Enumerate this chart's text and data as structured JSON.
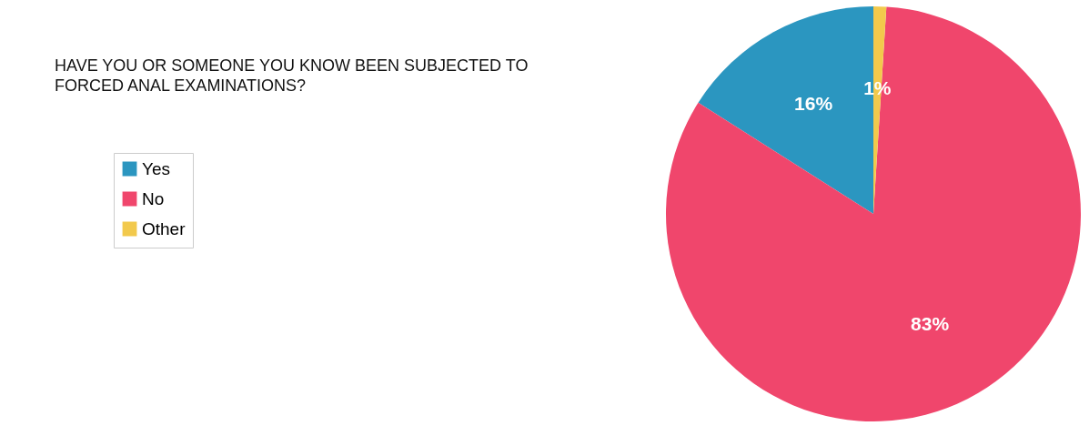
{
  "chart_data": {
    "type": "pie",
    "title": "HAVE YOU OR SOMEONE YOU KNOW BEEN SUBJECTED TO FORCED ANAL EXAMINATIONS?",
    "categories": [
      "Yes",
      "No",
      "Other"
    ],
    "values": [
      16,
      83,
      1
    ],
    "colors": [
      "#2b96c0",
      "#f0466c",
      "#f2c94c"
    ],
    "value_labels": [
      "16%",
      "83%",
      "1%"
    ],
    "legend": "left"
  }
}
